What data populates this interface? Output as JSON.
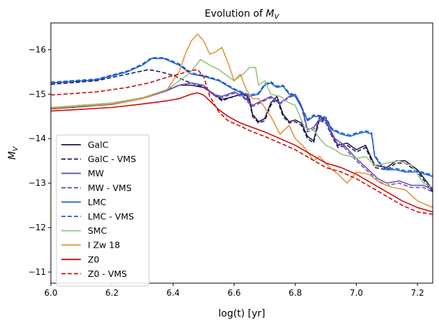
{
  "chart_data": {
    "type": "line",
    "title": "Evolution of M_V",
    "xlabel": "log(t) [yr]",
    "ylabel": "M_V",
    "xlim": [
      6.0,
      7.25
    ],
    "ylim": [
      -10.75,
      -16.6
    ],
    "y_inverted": true,
    "grid": false,
    "legend_position": "lower-left",
    "x_ticks": [
      {
        "value": 6.0,
        "label": "6.0"
      },
      {
        "value": 6.2,
        "label": "6.2"
      },
      {
        "value": 6.4,
        "label": "6.4"
      },
      {
        "value": 6.6,
        "label": "6.6"
      },
      {
        "value": 6.8,
        "label": "6.8"
      },
      {
        "value": 7.0,
        "label": "7.0"
      },
      {
        "value": 7.2,
        "label": "7.2"
      }
    ],
    "y_ticks": [
      {
        "value": -16,
        "label": "−16"
      },
      {
        "value": -15,
        "label": "−15"
      },
      {
        "value": -14,
        "label": "−14"
      },
      {
        "value": -13,
        "label": "−13"
      },
      {
        "value": -12,
        "label": "−12"
      },
      {
        "value": -11,
        "label": "−11"
      }
    ],
    "series": [
      {
        "name": "GalC",
        "color": "#1f1650",
        "dash": "solid",
        "x": [
          6.0,
          6.2,
          6.3,
          6.38,
          6.42,
          6.46,
          6.5,
          6.53,
          6.56,
          6.6,
          6.63,
          6.65,
          6.66,
          6.68,
          6.7,
          6.72,
          6.74,
          6.76,
          6.78,
          6.8,
          6.82,
          6.84,
          6.86,
          6.88,
          6.9,
          6.92,
          6.94,
          6.97,
          7.0,
          7.03,
          7.06,
          7.1,
          7.13,
          7.16,
          7.2,
          7.25
        ],
        "y": [
          -14.67,
          -14.77,
          -14.9,
          -15.08,
          -15.2,
          -15.2,
          -15.15,
          -15.02,
          -14.88,
          -14.95,
          -15.02,
          -14.9,
          -14.55,
          -14.38,
          -14.45,
          -14.8,
          -14.95,
          -14.55,
          -14.38,
          -14.42,
          -14.35,
          -14.05,
          -13.95,
          -14.5,
          -14.4,
          -14.1,
          -13.85,
          -13.9,
          -13.75,
          -13.85,
          -13.4,
          -13.35,
          -13.5,
          -13.5,
          -13.3,
          -12.85
        ]
      },
      {
        "name": "GalC - VMS",
        "color": "#1f1650",
        "dash": "dashed",
        "x": [
          6.0,
          6.15,
          6.25,
          6.32,
          6.36,
          6.4,
          6.44,
          6.48,
          6.5,
          6.53,
          6.56,
          6.6,
          6.63,
          6.65,
          6.66,
          6.68,
          6.7,
          6.72,
          6.74,
          6.76,
          6.78,
          6.8,
          6.82,
          6.84,
          6.86,
          6.88,
          6.9,
          6.92,
          6.94,
          6.97,
          7.0,
          7.03,
          7.06,
          7.1,
          7.13,
          7.16,
          7.2,
          7.25
        ],
        "y": [
          -15.22,
          -15.3,
          -15.45,
          -15.55,
          -15.5,
          -15.42,
          -15.3,
          -15.2,
          -15.15,
          -15.0,
          -14.85,
          -14.95,
          -15.0,
          -14.85,
          -14.5,
          -14.35,
          -14.4,
          -14.75,
          -14.9,
          -14.5,
          -14.35,
          -14.38,
          -14.3,
          -14.0,
          -13.9,
          -14.45,
          -14.35,
          -14.05,
          -13.8,
          -13.85,
          -13.7,
          -13.8,
          -13.35,
          -13.3,
          -13.45,
          -13.45,
          -13.25,
          -12.8
        ]
      },
      {
        "name": "MW",
        "color": "#6a4fb8",
        "dash": "solid",
        "x": [
          6.0,
          6.2,
          6.3,
          6.38,
          6.42,
          6.46,
          6.5,
          6.53,
          6.56,
          6.6,
          6.63,
          6.66,
          6.69,
          6.72,
          6.75,
          6.78,
          6.8,
          6.82,
          6.84,
          6.86,
          6.88,
          6.9,
          6.93,
          6.96,
          7.0,
          7.04,
          7.07,
          7.1,
          7.14,
          7.18,
          7.22,
          7.25
        ],
        "y": [
          -14.68,
          -14.78,
          -14.9,
          -15.08,
          -15.2,
          -15.25,
          -15.2,
          -15.0,
          -14.95,
          -15.05,
          -14.95,
          -14.75,
          -14.85,
          -14.95,
          -14.8,
          -14.95,
          -15.0,
          -14.75,
          -14.2,
          -14.25,
          -14.45,
          -14.4,
          -14.0,
          -13.85,
          -13.55,
          -13.3,
          -13.1,
          -13.0,
          -13.05,
          -12.95,
          -12.95,
          -12.85
        ]
      },
      {
        "name": "MW - VMS",
        "color": "#6a4fb8",
        "dash": "dashed",
        "x": [
          6.0,
          6.2,
          6.3,
          6.38,
          6.42,
          6.46,
          6.5,
          6.53,
          6.56,
          6.6,
          6.63,
          6.66,
          6.69,
          6.72,
          6.75,
          6.78,
          6.8,
          6.82,
          6.84,
          6.86,
          6.88,
          6.9,
          6.93,
          6.96,
          7.0,
          7.04,
          7.07,
          7.1,
          7.14,
          7.18,
          7.22,
          7.25
        ],
        "y": [
          -14.7,
          -14.8,
          -14.92,
          -15.1,
          -15.2,
          -15.25,
          -15.18,
          -14.98,
          -14.92,
          -15.02,
          -14.92,
          -14.72,
          -14.82,
          -14.92,
          -14.78,
          -14.92,
          -14.98,
          -14.72,
          -14.15,
          -14.2,
          -14.4,
          -14.35,
          -13.95,
          -13.8,
          -13.5,
          -13.25,
          -13.05,
          -12.95,
          -13.0,
          -12.9,
          -12.9,
          -12.8
        ]
      },
      {
        "name": "LMC",
        "color": "#1a5fd0",
        "dash": "solid",
        "x": [
          6.0,
          6.15,
          6.25,
          6.3,
          6.33,
          6.37,
          6.42,
          6.46,
          6.5,
          6.55,
          6.6,
          6.65,
          6.68,
          6.7,
          6.72,
          6.74,
          6.76,
          6.78,
          6.8,
          6.82,
          6.84,
          6.86,
          6.88,
          6.9,
          6.92,
          6.95,
          6.98,
          7.0,
          7.03,
          7.05,
          7.06,
          7.08,
          7.1,
          7.13,
          7.16,
          7.2,
          7.25
        ],
        "y": [
          -15.25,
          -15.32,
          -15.5,
          -15.65,
          -15.8,
          -15.8,
          -15.65,
          -15.45,
          -15.4,
          -15.3,
          -15.1,
          -14.95,
          -15.0,
          -15.2,
          -15.25,
          -15.15,
          -15.18,
          -15.0,
          -14.95,
          -14.7,
          -14.4,
          -14.5,
          -14.5,
          -14.45,
          -14.2,
          -14.1,
          -14.05,
          -14.1,
          -14.15,
          -14.1,
          -13.6,
          -13.4,
          -13.3,
          -13.3,
          -13.25,
          -13.25,
          -13.15
        ]
      },
      {
        "name": "LMC - VMS",
        "color": "#1a5fd0",
        "dash": "dashed",
        "x": [
          6.0,
          6.15,
          6.25,
          6.3,
          6.33,
          6.37,
          6.42,
          6.46,
          6.5,
          6.55,
          6.6,
          6.65,
          6.68,
          6.7,
          6.72,
          6.74,
          6.76,
          6.78,
          6.8,
          6.82,
          6.84,
          6.86,
          6.88,
          6.9,
          6.92,
          6.95,
          6.98,
          7.0,
          7.03,
          7.05,
          7.06,
          7.08,
          7.1,
          7.13,
          7.16,
          7.2,
          7.25
        ],
        "y": [
          -15.27,
          -15.34,
          -15.52,
          -15.68,
          -15.82,
          -15.82,
          -15.68,
          -15.48,
          -15.42,
          -15.32,
          -15.12,
          -14.98,
          -15.03,
          -15.23,
          -15.28,
          -15.18,
          -15.2,
          -15.03,
          -14.98,
          -14.73,
          -14.43,
          -14.53,
          -14.52,
          -14.48,
          -14.23,
          -14.13,
          -14.08,
          -14.13,
          -14.18,
          -14.13,
          -13.63,
          -13.43,
          -13.33,
          -13.33,
          -13.28,
          -13.28,
          -13.18
        ]
      },
      {
        "name": "SMC",
        "color": "#93c47d",
        "dash": "solid",
        "x": [
          6.0,
          6.2,
          6.3,
          6.38,
          6.42,
          6.45,
          6.47,
          6.49,
          6.52,
          6.55,
          6.58,
          6.6,
          6.63,
          6.65,
          6.67,
          6.68,
          6.7,
          6.72,
          6.75,
          6.78,
          6.8,
          6.83,
          6.86,
          6.88,
          6.9,
          6.93,
          6.95,
          6.98,
          7.0,
          7.03,
          7.06,
          7.1,
          7.14,
          7.18,
          7.22,
          7.25
        ],
        "y": [
          -14.7,
          -14.8,
          -14.92,
          -15.1,
          -15.3,
          -15.45,
          -15.6,
          -15.78,
          -15.65,
          -15.55,
          -15.4,
          -15.3,
          -15.45,
          -15.6,
          -15.6,
          -15.2,
          -15.3,
          -15.0,
          -14.95,
          -14.8,
          -14.75,
          -14.25,
          -14.2,
          -14.0,
          -13.85,
          -13.75,
          -13.65,
          -13.6,
          -13.55,
          -13.6,
          -13.4,
          -13.45,
          -13.5,
          -13.4,
          -13.0,
          -12.9
        ]
      },
      {
        "name": "I Zw 18",
        "color": "#e5933c",
        "dash": "solid",
        "x": [
          6.0,
          6.2,
          6.3,
          6.38,
          6.42,
          6.44,
          6.46,
          6.48,
          6.5,
          6.52,
          6.54,
          6.56,
          6.58,
          6.6,
          6.62,
          6.64,
          6.66,
          6.68,
          6.7,
          6.72,
          6.75,
          6.78,
          6.8,
          6.83,
          6.86,
          6.88,
          6.9,
          6.92,
          6.94,
          6.97,
          7.0,
          7.04,
          7.08,
          7.12,
          7.16,
          7.2,
          7.25
        ],
        "y": [
          -14.68,
          -14.78,
          -14.9,
          -15.1,
          -15.5,
          -15.9,
          -16.2,
          -16.35,
          -16.2,
          -15.9,
          -15.95,
          -16.05,
          -15.7,
          -15.3,
          -15.45,
          -15.1,
          -14.9,
          -14.9,
          -14.7,
          -14.5,
          -14.1,
          -14.3,
          -14.0,
          -13.8,
          -13.5,
          -13.6,
          -13.45,
          -13.3,
          -13.2,
          -13.0,
          -13.25,
          -13.2,
          -13.0,
          -12.9,
          -12.85,
          -12.6,
          -12.45
        ]
      },
      {
        "name": "Z0",
        "color": "#cc0a0a",
        "dash": "solid",
        "x": [
          6.0,
          6.2,
          6.3,
          6.38,
          6.42,
          6.46,
          6.48,
          6.5,
          6.52,
          6.55,
          6.58,
          6.62,
          6.66,
          6.7,
          6.75,
          6.8,
          6.85,
          6.9,
          6.95,
          7.0,
          7.05,
          7.1,
          7.15,
          7.2,
          7.25
        ],
        "y": [
          -14.62,
          -14.7,
          -14.78,
          -14.85,
          -14.9,
          -15.0,
          -15.03,
          -14.98,
          -14.85,
          -14.65,
          -14.5,
          -14.35,
          -14.25,
          -14.15,
          -14.0,
          -13.85,
          -13.65,
          -13.45,
          -13.35,
          -13.2,
          -13.0,
          -12.8,
          -12.6,
          -12.45,
          -12.35
        ]
      },
      {
        "name": "Z0 - VMS",
        "color": "#cc0a0a",
        "dash": "dashed",
        "x": [
          6.0,
          6.15,
          6.25,
          6.32,
          6.38,
          6.42,
          6.46,
          6.48,
          6.5,
          6.52,
          6.55,
          6.58,
          6.62,
          6.66,
          6.7,
          6.75,
          6.8,
          6.85,
          6.9,
          6.95,
          7.0,
          7.05,
          7.1,
          7.15,
          7.2,
          7.25
        ],
        "y": [
          -14.98,
          -15.05,
          -15.15,
          -15.25,
          -15.38,
          -15.45,
          -15.53,
          -15.55,
          -15.4,
          -14.95,
          -14.6,
          -14.4,
          -14.28,
          -14.15,
          -14.05,
          -13.9,
          -13.75,
          -13.55,
          -13.35,
          -13.25,
          -13.1,
          -12.9,
          -12.7,
          -12.5,
          -12.35,
          -12.3
        ]
      }
    ]
  }
}
